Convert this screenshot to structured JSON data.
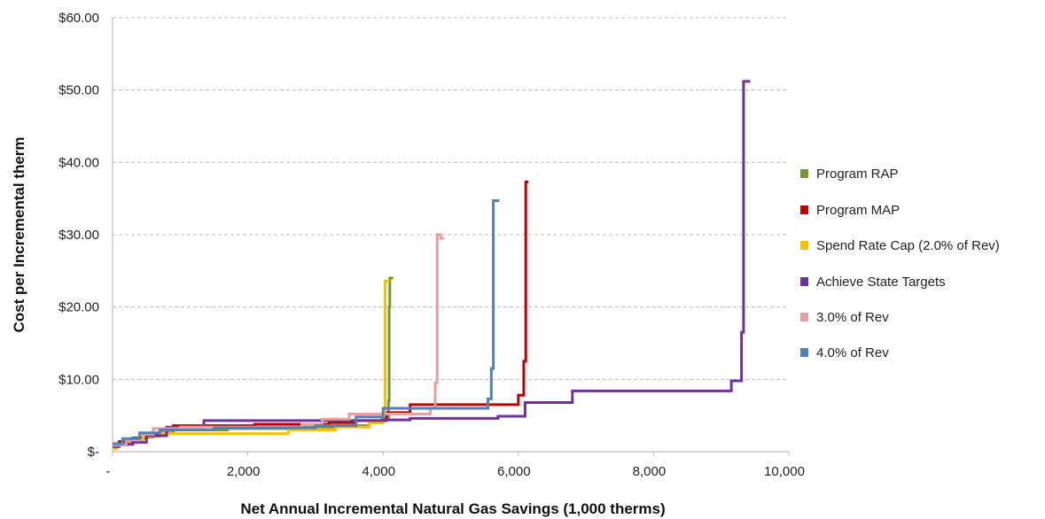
{
  "chart_data": {
    "type": "line",
    "title": "",
    "xlabel": "Net Annual Incremental Natural Gas Savings (1,000 therms)",
    "ylabel": "Cost per Incremental therm",
    "xlim": [
      0,
      10000
    ],
    "ylim": [
      0,
      60
    ],
    "x_ticks": [
      0,
      2000,
      4000,
      6000,
      8000,
      10000
    ],
    "x_tick_labels": [
      "-",
      "2,000",
      "4,000",
      "6,000",
      "8,000",
      "10,000"
    ],
    "y_ticks": [
      0,
      10,
      20,
      30,
      40,
      50,
      60
    ],
    "y_tick_labels": [
      "$-",
      "$10.00",
      "$20.00",
      "$30.00",
      "$40.00",
      "$50.00",
      "$60.00"
    ],
    "grid": "horizontal dashed",
    "legend_position": "right",
    "series": [
      {
        "name": "Program RAP",
        "color": "#77933C",
        "points": [
          [
            0,
            0.8
          ],
          [
            80,
            0.8
          ],
          [
            80,
            1.2
          ],
          [
            250,
            1.2
          ],
          [
            250,
            1.6
          ],
          [
            400,
            1.6
          ],
          [
            400,
            2.0
          ],
          [
            600,
            2.0
          ],
          [
            600,
            2.6
          ],
          [
            900,
            2.6
          ],
          [
            900,
            3.0
          ],
          [
            1700,
            3.0
          ],
          [
            1700,
            3.2
          ],
          [
            2600,
            3.2
          ],
          [
            2600,
            3.4
          ],
          [
            3300,
            3.4
          ],
          [
            3300,
            3.6
          ],
          [
            3800,
            3.6
          ],
          [
            3800,
            4.0
          ],
          [
            3980,
            4.0
          ],
          [
            3980,
            4.6
          ],
          [
            4080,
            4.6
          ],
          [
            4080,
            7.0
          ],
          [
            4090,
            7.0
          ],
          [
            4090,
            20.0
          ],
          [
            4100,
            20.0
          ],
          [
            4100,
            24.0
          ],
          [
            4150,
            24.0
          ]
        ]
      },
      {
        "name": "Program MAP",
        "color": "#C00000",
        "points": [
          [
            0,
            0.9
          ],
          [
            100,
            0.9
          ],
          [
            100,
            1.4
          ],
          [
            300,
            1.4
          ],
          [
            300,
            1.9
          ],
          [
            500,
            1.9
          ],
          [
            500,
            2.4
          ],
          [
            700,
            2.4
          ],
          [
            700,
            3.0
          ],
          [
            900,
            3.0
          ],
          [
            900,
            3.6
          ],
          [
            2100,
            3.6
          ],
          [
            2100,
            3.8
          ],
          [
            3200,
            3.8
          ],
          [
            3200,
            4.0
          ],
          [
            3600,
            4.0
          ],
          [
            3600,
            4.3
          ],
          [
            4050,
            4.3
          ],
          [
            4050,
            5.4
          ],
          [
            4400,
            5.4
          ],
          [
            4400,
            6.5
          ],
          [
            6000,
            6.5
          ],
          [
            6000,
            7.8
          ],
          [
            6080,
            7.8
          ],
          [
            6080,
            12.5
          ],
          [
            6110,
            12.5
          ],
          [
            6110,
            37.3
          ],
          [
            6150,
            37.3
          ]
        ]
      },
      {
        "name": "Spend Rate Cap (2.0% of Rev)",
        "color": "#FFC000",
        "points": [
          [
            0,
            0.4
          ],
          [
            60,
            0.4
          ],
          [
            60,
            1.0
          ],
          [
            250,
            1.0
          ],
          [
            250,
            1.6
          ],
          [
            450,
            1.6
          ],
          [
            450,
            2.1
          ],
          [
            700,
            2.1
          ],
          [
            700,
            2.5
          ],
          [
            2600,
            2.5
          ],
          [
            2600,
            3.0
          ],
          [
            3300,
            3.0
          ],
          [
            3300,
            3.4
          ],
          [
            3800,
            3.4
          ],
          [
            3800,
            4.0
          ],
          [
            4000,
            4.0
          ],
          [
            4000,
            5.5
          ],
          [
            4030,
            5.5
          ],
          [
            4030,
            23.6
          ],
          [
            4100,
            23.6
          ]
        ]
      },
      {
        "name": "Achieve State Targets",
        "color": "#7030A0",
        "points": [
          [
            0,
            0.7
          ],
          [
            100,
            0.7
          ],
          [
            100,
            1.0
          ],
          [
            300,
            1.0
          ],
          [
            300,
            1.3
          ],
          [
            500,
            1.3
          ],
          [
            500,
            2.2
          ],
          [
            800,
            2.2
          ],
          [
            800,
            3.4
          ],
          [
            1350,
            3.4
          ],
          [
            1350,
            4.3
          ],
          [
            4000,
            4.3
          ],
          [
            4000,
            4.4
          ],
          [
            4400,
            4.4
          ],
          [
            4400,
            4.6
          ],
          [
            5700,
            4.6
          ],
          [
            5700,
            4.9
          ],
          [
            6100,
            4.9
          ],
          [
            6100,
            6.8
          ],
          [
            6800,
            6.8
          ],
          [
            6800,
            8.4
          ],
          [
            9150,
            8.4
          ],
          [
            9150,
            9.8
          ],
          [
            9300,
            9.8
          ],
          [
            9300,
            16.5
          ],
          [
            9330,
            16.5
          ],
          [
            9330,
            51.2
          ],
          [
            9430,
            51.2
          ]
        ]
      },
      {
        "name": "3.0% of Rev",
        "color": "#E6A0A0",
        "points": [
          [
            0,
            0.9
          ],
          [
            200,
            0.9
          ],
          [
            200,
            1.6
          ],
          [
            400,
            1.6
          ],
          [
            400,
            2.4
          ],
          [
            600,
            2.4
          ],
          [
            600,
            3.2
          ],
          [
            1000,
            3.2
          ],
          [
            1000,
            3.4
          ],
          [
            2800,
            3.4
          ],
          [
            2800,
            3.8
          ],
          [
            3100,
            3.8
          ],
          [
            3100,
            4.5
          ],
          [
            3500,
            4.5
          ],
          [
            3500,
            5.2
          ],
          [
            4700,
            5.2
          ],
          [
            4700,
            6.0
          ],
          [
            4770,
            6.0
          ],
          [
            4770,
            9.5
          ],
          [
            4800,
            9.5
          ],
          [
            4800,
            30.0
          ],
          [
            4850,
            30.0
          ],
          [
            4850,
            29.5
          ],
          [
            4900,
            29.5
          ]
        ]
      },
      {
        "name": "4.0% of Rev",
        "color": "#4F81BD",
        "points": [
          [
            0,
            1.1
          ],
          [
            150,
            1.1
          ],
          [
            150,
            1.8
          ],
          [
            400,
            1.8
          ],
          [
            400,
            2.6
          ],
          [
            700,
            2.6
          ],
          [
            700,
            3.0
          ],
          [
            1500,
            3.0
          ],
          [
            1500,
            3.3
          ],
          [
            3000,
            3.3
          ],
          [
            3000,
            3.6
          ],
          [
            3600,
            3.6
          ],
          [
            3600,
            4.8
          ],
          [
            4000,
            4.8
          ],
          [
            4000,
            6.0
          ],
          [
            5550,
            6.0
          ],
          [
            5550,
            7.3
          ],
          [
            5600,
            7.3
          ],
          [
            5600,
            11.5
          ],
          [
            5630,
            11.5
          ],
          [
            5630,
            34.7
          ],
          [
            5720,
            34.7
          ]
        ]
      }
    ]
  }
}
